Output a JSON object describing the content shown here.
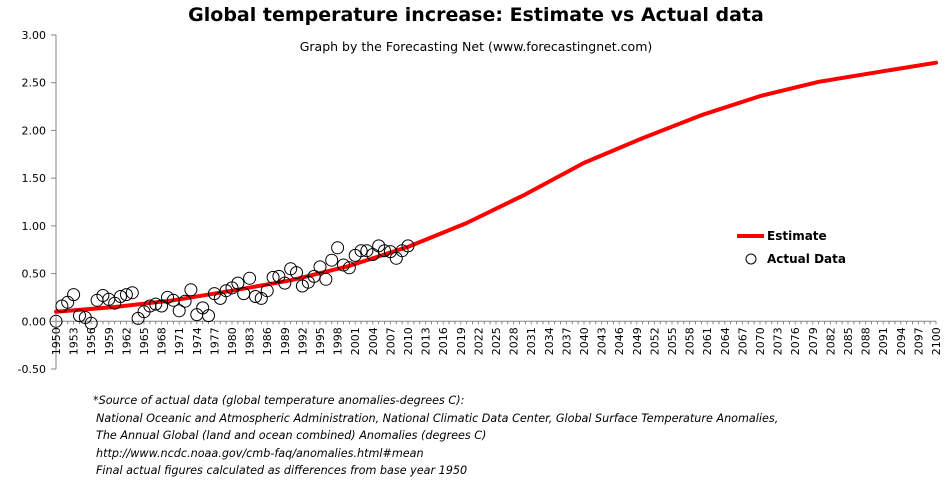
{
  "chart_data": {
    "type": "line",
    "title": "Global temperature increase: Estimate vs Actual data",
    "subtitle": "Graph by the  Forecasting Net (www.forecastingnet.com)",
    "xlabel": "",
    "ylabel": "",
    "xlim": [
      1950,
      2100
    ],
    "ylim": [
      -0.5,
      3.0
    ],
    "grid": false,
    "legend_position": "right",
    "y_tick_labels": [
      "-0.50",
      "0.00",
      "0.50",
      "1.00",
      "1.50",
      "2.00",
      "2.50",
      "3.00"
    ],
    "y_ticks": [
      -0.5,
      0,
      0.5,
      1.0,
      1.5,
      2.0,
      2.5,
      3.0
    ],
    "x_tick_labels": [
      "1950",
      "1953",
      "1956",
      "1959",
      "1962",
      "1965",
      "1968",
      "1971",
      "1974",
      "1977",
      "1980",
      "1983",
      "1986",
      "1989",
      "1992",
      "1995",
      "1998",
      "2001",
      "2004",
      "2007",
      "2010",
      "2013",
      "2016",
      "2019",
      "2022",
      "2025",
      "2028",
      "2031",
      "2034",
      "2037",
      "2040",
      "2043",
      "2046",
      "2049",
      "2052",
      "2055",
      "2058",
      "2061",
      "2064",
      "2067",
      "2070",
      "2073",
      "2076",
      "2079",
      "2082",
      "2085",
      "2088",
      "2091",
      "2094",
      "2097",
      "2100"
    ],
    "series": [
      {
        "name": "Estimate",
        "kind": "line",
        "color": "#ff0000",
        "x": [
          1950,
          1960,
          1970,
          1980,
          1990,
          2000,
          2010,
          2020,
          2030,
          2040,
          2050,
          2060,
          2070,
          2080,
          2090,
          2100
        ],
        "y": [
          0.1,
          0.15,
          0.22,
          0.32,
          0.43,
          0.58,
          0.78,
          1.03,
          1.33,
          1.66,
          1.92,
          2.16,
          2.36,
          2.51,
          2.61,
          2.71
        ]
      },
      {
        "name": "Actual Data",
        "kind": "scatter",
        "color": "#000000",
        "x": [
          1950,
          1951,
          1952,
          1953,
          1954,
          1955,
          1956,
          1957,
          1958,
          1959,
          1960,
          1961,
          1962,
          1963,
          1964,
          1965,
          1966,
          1967,
          1968,
          1969,
          1970,
          1971,
          1972,
          1973,
          1974,
          1975,
          1976,
          1977,
          1978,
          1979,
          1980,
          1981,
          1982,
          1983,
          1984,
          1985,
          1986,
          1987,
          1988,
          1989,
          1990,
          1991,
          1992,
          1993,
          1994,
          1995,
          1996,
          1997,
          1998,
          1999,
          2000,
          2001,
          2002,
          2003,
          2004,
          2005,
          2006,
          2007,
          2008,
          2009,
          2010
        ],
        "y": [
          0.0,
          0.16,
          0.2,
          0.28,
          0.06,
          0.04,
          -0.02,
          0.22,
          0.27,
          0.23,
          0.19,
          0.26,
          0.28,
          0.3,
          0.03,
          0.1,
          0.16,
          0.18,
          0.16,
          0.25,
          0.22,
          0.11,
          0.21,
          0.33,
          0.07,
          0.14,
          0.06,
          0.29,
          0.24,
          0.32,
          0.35,
          0.4,
          0.29,
          0.45,
          0.26,
          0.24,
          0.32,
          0.46,
          0.47,
          0.4,
          0.55,
          0.51,
          0.37,
          0.41,
          0.47,
          0.57,
          0.44,
          0.64,
          0.77,
          0.59,
          0.56,
          0.69,
          0.74,
          0.74,
          0.7,
          0.79,
          0.74,
          0.73,
          0.66,
          0.74,
          0.79
        ]
      }
    ]
  },
  "source_note": {
    "lines": [
      "*Source of actual data (global temperature anomalies-degrees C):",
      "National Oceanic and Atmospheric Administration, National Climatic Data Center, Global Surface Temperature Anomalies,",
      "The Annual Global (land and ocean combined) Anomalies (degrees C)",
      "http://www.ncdc.noaa.gov/cmb-faq/anomalies.html#mean",
      "Final actual figures calculated as differences from base year 1950"
    ]
  }
}
